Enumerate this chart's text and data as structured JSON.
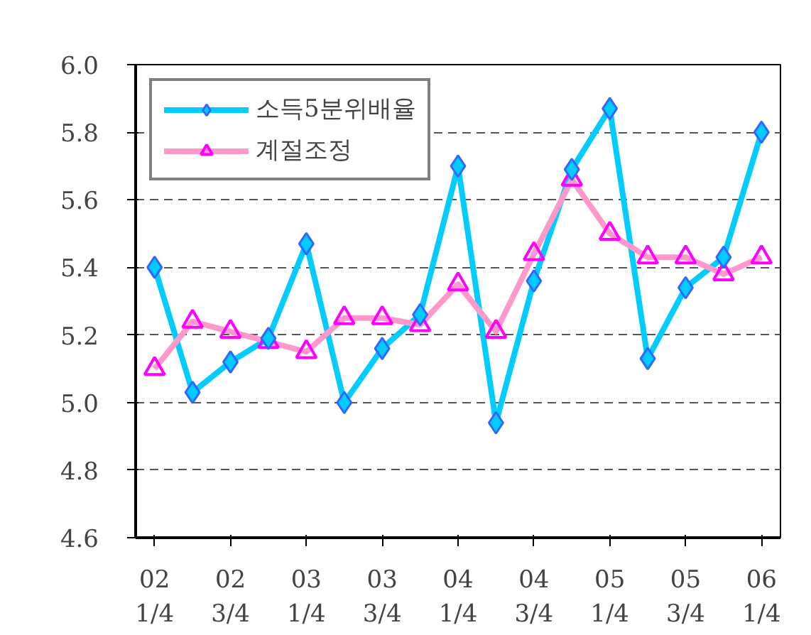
{
  "chart_data": {
    "type": "line",
    "categories": [
      "02\n1/4",
      null,
      "02\n3/4",
      null,
      "03\n1/4",
      null,
      "03\n3/4",
      null,
      "04\n1/4",
      null,
      "04\n3/4",
      null,
      "05\n1/4",
      null,
      "05\n3/4",
      null,
      "06\n1/4"
    ],
    "series": [
      {
        "name": "소득5분위배율",
        "color": "#00ccff",
        "marker": "diamond",
        "values": [
          5.4,
          5.03,
          5.12,
          5.19,
          5.47,
          5.0,
          5.16,
          5.26,
          5.7,
          4.94,
          5.36,
          5.69,
          5.87,
          5.13,
          5.34,
          5.43,
          5.8
        ]
      },
      {
        "name": "계절조정",
        "color": "#ff99cc",
        "marker": "triangle",
        "values": [
          5.1,
          5.24,
          5.21,
          5.18,
          5.15,
          5.25,
          5.25,
          5.23,
          5.35,
          5.21,
          5.44,
          5.66,
          5.5,
          5.43,
          5.43,
          5.38,
          5.43
        ]
      }
    ],
    "ylim": [
      4.6,
      6.0
    ],
    "yticks": [
      {
        "value": 4.6,
        "label": "4.6"
      },
      {
        "value": 4.8,
        "label": "4.8"
      },
      {
        "value": 5.0,
        "label": "5.0"
      },
      {
        "value": 5.2,
        "label": "5.2"
      },
      {
        "value": 5.4,
        "label": "5.4"
      },
      {
        "value": 5.6,
        "label": "5.6"
      },
      {
        "value": 5.8,
        "label": "5.8"
      },
      {
        "value": 6.0,
        "label": "6.0"
      }
    ],
    "grid": "y",
    "legend": "top left",
    "line_style": "solid"
  }
}
